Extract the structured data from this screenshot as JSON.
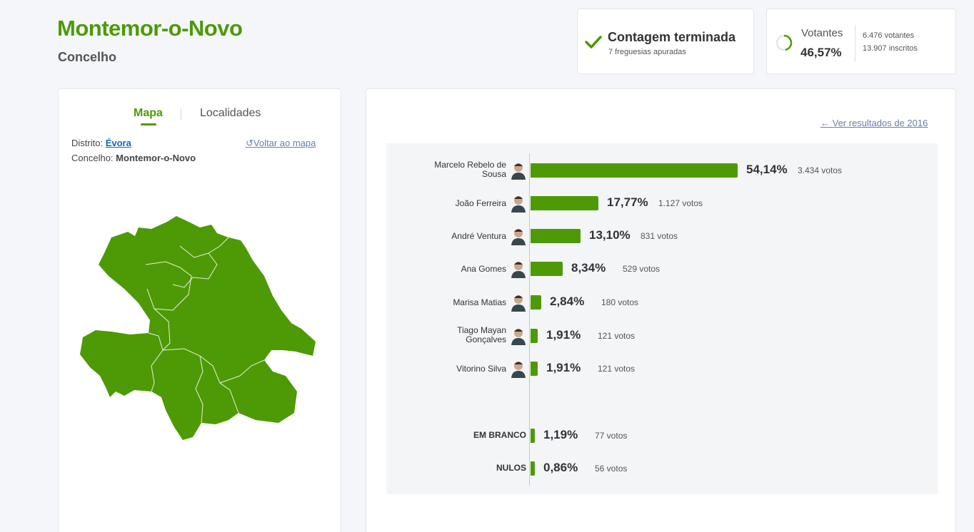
{
  "header": {
    "title": "Montemor-o-Novo",
    "subtitle": "Concelho"
  },
  "status": {
    "title": "Contagem terminada",
    "subtitle": "7 freguesias apuradas",
    "accent": "#4e9a06"
  },
  "turnout": {
    "label": "Votantes",
    "percent": "46,57%",
    "voters": "6.476 votantes",
    "registered": "13.907 inscritos"
  },
  "map_panel": {
    "tabs": [
      "Mapa",
      "Localidades"
    ],
    "district_label": "Distrito:",
    "district_value": "Évora",
    "council_label": "Concelho:",
    "council_value": "Montemor-o-Novo",
    "back_link": "Voltar ao mapa",
    "back_icon": "undo-icon",
    "map_fill": "#4e9a06"
  },
  "results": {
    "previous_link": "Ver resultados de 2016",
    "previous_icon": "arrow-left-icon",
    "bar_color": "#4e9a06",
    "rows": [
      {
        "name": "Marcelo Rebelo de Sousa",
        "share": 54.14,
        "percent": "54,14%",
        "votes": "3.434 votos",
        "avatar": "portrait-icon"
      },
      {
        "name": "João Ferreira",
        "share": 17.77,
        "percent": "17,77%",
        "votes": "1.127 votos",
        "avatar": "portrait-icon"
      },
      {
        "name": "André Ventura",
        "share": 13.1,
        "percent": "13,10%",
        "votes": "831 votos",
        "avatar": "portrait-icon"
      },
      {
        "name": "Ana Gomes",
        "share": 8.34,
        "percent": "8,34%",
        "votes": "529 votos",
        "avatar": "portrait-icon"
      },
      {
        "name": "Marisa Matias",
        "share": 2.84,
        "percent": "2,84%",
        "votes": "180 votos",
        "avatar": "portrait-icon"
      },
      {
        "name": "Tiago Mayan Gonçalves",
        "share": 1.91,
        "percent": "1,91%",
        "votes": "121 votos",
        "avatar": "portrait-icon"
      },
      {
        "name": "Vitorino Silva",
        "share": 1.91,
        "percent": "1,91%",
        "votes": "121 votos",
        "avatar": "portrait-icon"
      },
      {
        "name": "EM BRANCO",
        "share": 1.19,
        "percent": "1,19%",
        "votes": "77 votos",
        "avatar": null
      },
      {
        "name": "NULOS",
        "share": 0.86,
        "percent": "0,86%",
        "votes": "56 votos",
        "avatar": null
      }
    ]
  }
}
